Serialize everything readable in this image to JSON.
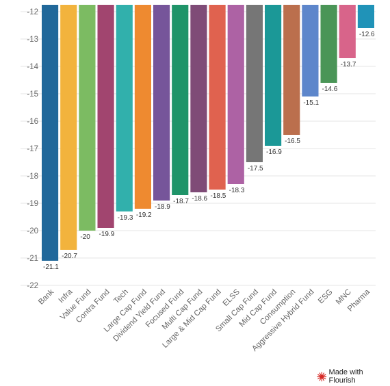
{
  "chart_data": {
    "type": "bar",
    "categories": [
      "Bank",
      "Infra",
      "Value Fund",
      "Contra Fund",
      "Tech",
      "Large Cap Fund",
      "Dividend Yield Fund",
      "Focused Fund",
      "Multi Cap Fund",
      "Large & Mid Cap Fund",
      "ELSS",
      "Small Cap Fund",
      "Mid Cap Fund",
      "Consumption",
      "Aggressive Hybrid Fund",
      "ESG",
      "MNC",
      "Pharma"
    ],
    "values": [
      -21.1,
      -20.7,
      -20,
      -19.9,
      -19.3,
      -19.2,
      -18.9,
      -18.7,
      -18.6,
      -18.5,
      -18.3,
      -17.5,
      -16.9,
      -16.5,
      -15.1,
      -14.6,
      -13.7,
      -12.6
    ],
    "value_labels": [
      "-21.1",
      "-20.7",
      "-20",
      "-19.9",
      "-19.3",
      "-19.2",
      "-18.9",
      "-18.7",
      "-18.6",
      "-18.5",
      "-18.3",
      "-17.5",
      "-16.9",
      "-16.5",
      "-15.1",
      "-14.6",
      "-13.7",
      "-12.6"
    ],
    "colors": [
      "#21689a",
      "#f2b33d",
      "#7cbb62",
      "#a1456f",
      "#31b0ac",
      "#ee8a30",
      "#76559a",
      "#1f9469",
      "#7f4b77",
      "#e0624f",
      "#ad62a4",
      "#767676",
      "#1b9897",
      "#bb6f4d",
      "#5d86cb",
      "#4a9557",
      "#d8648a",
      "#2093b8"
    ],
    "ylim": [
      -22,
      -12
    ],
    "yticks": [
      "-12",
      "-13",
      "-14",
      "-15",
      "-16",
      "-17",
      "-18",
      "-19",
      "-20",
      "-21",
      "-22"
    ],
    "grid": true,
    "title": "",
    "xlabel": "",
    "ylabel": ""
  },
  "credit": {
    "text": "Made with Flourish",
    "icon": "flourish-logo-icon"
  }
}
